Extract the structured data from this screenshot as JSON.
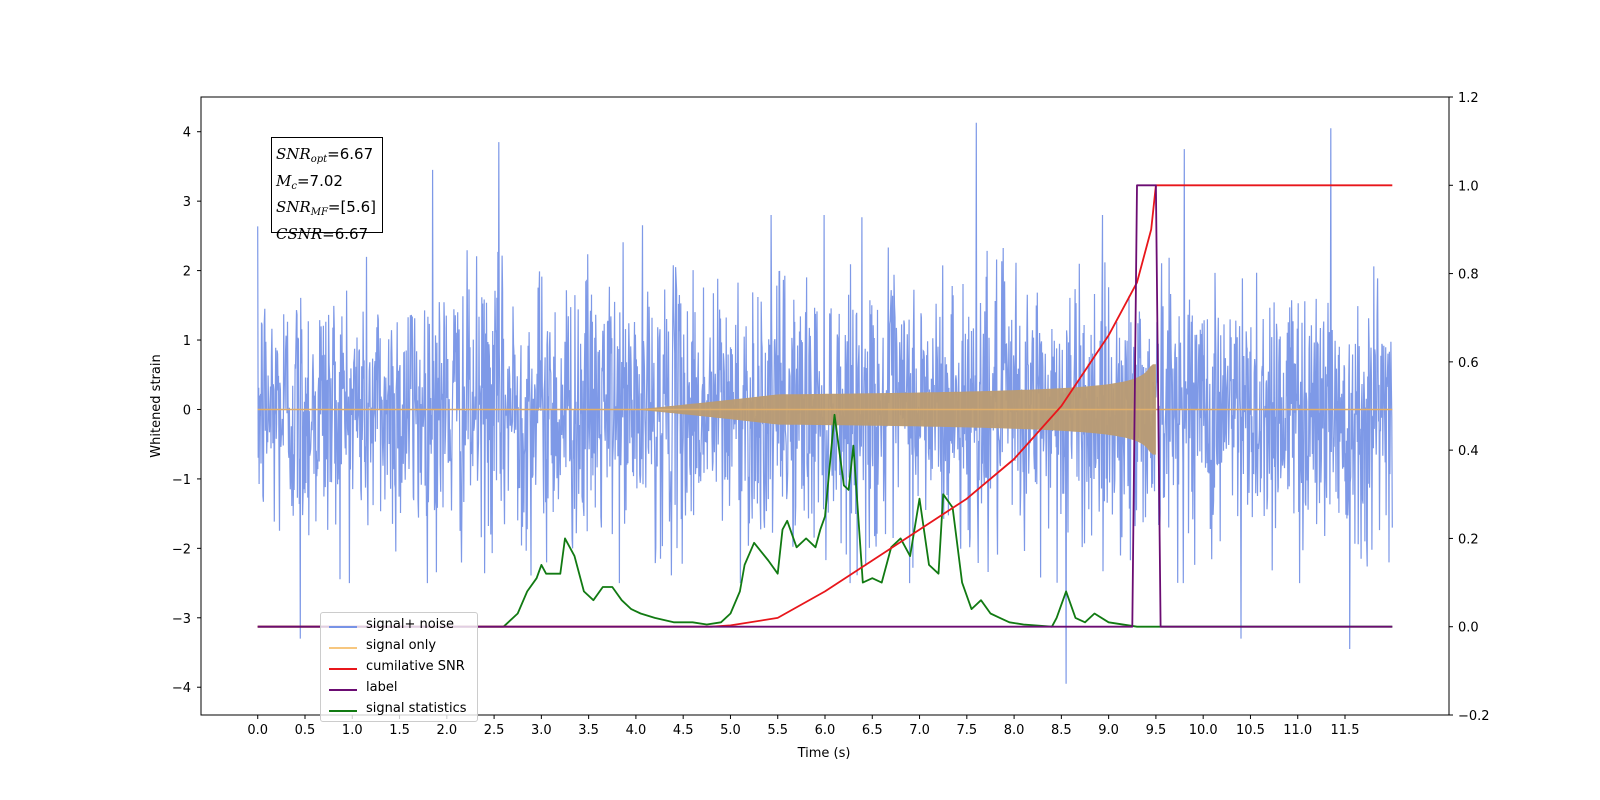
{
  "chart_data": {
    "type": "line",
    "xlabel": "Time (s)",
    "ylabel": "Whitened strain",
    "xlim": [
      -0.6,
      12.6
    ],
    "ylim": [
      -4.4,
      4.5
    ],
    "y2lim": [
      -0.2,
      1.2
    ],
    "xticks": [
      "0.0",
      "0.5",
      "1.0",
      "1.5",
      "2.0",
      "2.5",
      "3.0",
      "3.5",
      "4.0",
      "4.5",
      "5.0",
      "5.5",
      "6.0",
      "6.5",
      "7.0",
      "7.5",
      "8.0",
      "8.5",
      "9.0",
      "9.5",
      "10.0",
      "10.5",
      "11.0",
      "11.5"
    ],
    "yticks": [
      "−4",
      "−3",
      "−2",
      "−1",
      "0",
      "1",
      "2",
      "3",
      "4"
    ],
    "y2ticks": [
      "−0.2",
      "0.0",
      "0.2",
      "0.4",
      "0.6",
      "0.8",
      "1.0",
      "1.2"
    ],
    "annotation": {
      "snr_opt_label": "SNR",
      "snr_opt_sub": "opt",
      "snr_opt_value": "=6.67",
      "mc_label": "M",
      "mc_sub": "c",
      "mc_value": "=7.02",
      "snr_mf_label": "SNR",
      "snr_mf_sub": "MF",
      "snr_mf_value": "=[5.6]",
      "csnr_label": "CSNR",
      "csnr_value": "=6.67"
    },
    "series": [
      {
        "name": "signal+ noise",
        "color": "#7793e6",
        "axis": "left",
        "description_type": "noise",
        "x_range": [
          0,
          12
        ],
        "typical_amplitude": [
          -2.0,
          2.3
        ],
        "notable_peaks": [
          {
            "x": 7.6,
            "y": 4.13
          },
          {
            "x": 2.55,
            "y": 3.85
          },
          {
            "x": 11.35,
            "y": 4.05
          },
          {
            "x": 8.55,
            "y": -3.95
          },
          {
            "x": 11.55,
            "y": -3.45
          },
          {
            "x": 0.45,
            "y": -3.3
          },
          {
            "x": 10.4,
            "y": -3.3
          },
          {
            "x": 1.85,
            "y": 3.45
          },
          {
            "x": 9.8,
            "y": 3.75
          }
        ]
      },
      {
        "name": "signal only",
        "color": "#f2a33a",
        "axis": "left",
        "description_type": "chirp",
        "start": 5.5,
        "merger": 9.5,
        "peak_amplitude": 0.65
      },
      {
        "name": "cumilative SNR",
        "color": "#e8161b",
        "axis": "right",
        "x": [
          0.0,
          4.8,
          5.0,
          5.5,
          6.0,
          6.5,
          7.0,
          7.5,
          8.0,
          8.5,
          9.0,
          9.3,
          9.45,
          9.5,
          9.6,
          12.0
        ],
        "y": [
          0.0,
          0.0,
          0.003,
          0.02,
          0.08,
          0.15,
          0.22,
          0.29,
          0.38,
          0.5,
          0.66,
          0.78,
          0.9,
          1.0,
          1.0,
          1.0
        ]
      },
      {
        "name": "label",
        "color": "#6b0c72",
        "axis": "right",
        "x": [
          0.0,
          9.25,
          9.3,
          9.5,
          9.55,
          12.0
        ],
        "y": [
          0.0,
          0.0,
          1.0,
          1.0,
          0.0,
          0.0
        ]
      },
      {
        "name": "signal statistics",
        "color": "#117a12",
        "axis": "right",
        "x": [
          0.0,
          2.6,
          2.75,
          2.85,
          2.95,
          3.0,
          3.05,
          3.2,
          3.25,
          3.35,
          3.45,
          3.55,
          3.65,
          3.75,
          3.85,
          3.95,
          4.05,
          4.2,
          4.4,
          4.6,
          4.75,
          4.9,
          5.0,
          5.1,
          5.15,
          5.25,
          5.4,
          5.5,
          5.55,
          5.6,
          5.7,
          5.8,
          5.9,
          5.95,
          6.0,
          6.1,
          6.2,
          6.25,
          6.3,
          6.4,
          6.5,
          6.6,
          6.7,
          6.8,
          6.9,
          7.0,
          7.1,
          7.2,
          7.25,
          7.35,
          7.45,
          7.55,
          7.65,
          7.75,
          7.85,
          7.95,
          8.1,
          8.4,
          8.45,
          8.55,
          8.65,
          8.75,
          8.85,
          9.0,
          9.3,
          9.5,
          12.0
        ],
        "y": [
          0.0,
          0.0,
          0.03,
          0.08,
          0.11,
          0.14,
          0.12,
          0.12,
          0.2,
          0.16,
          0.08,
          0.06,
          0.09,
          0.09,
          0.06,
          0.04,
          0.03,
          0.02,
          0.01,
          0.01,
          0.005,
          0.01,
          0.03,
          0.08,
          0.14,
          0.19,
          0.15,
          0.12,
          0.22,
          0.24,
          0.18,
          0.2,
          0.18,
          0.22,
          0.25,
          0.48,
          0.32,
          0.31,
          0.41,
          0.1,
          0.11,
          0.1,
          0.18,
          0.2,
          0.16,
          0.29,
          0.14,
          0.12,
          0.3,
          0.27,
          0.1,
          0.04,
          0.06,
          0.03,
          0.02,
          0.01,
          0.005,
          0.0,
          0.02,
          0.08,
          0.02,
          0.01,
          0.03,
          0.01,
          0.0,
          0.0,
          0.0
        ]
      }
    ],
    "legend": {
      "placement": "lower-left",
      "entries": [
        {
          "label": "signal+ noise",
          "color": "#7793e6"
        },
        {
          "label": "signal only",
          "color": "#f2a33a"
        },
        {
          "label": "cumilative SNR",
          "color": "#e8161b"
        },
        {
          "label": "label",
          "color": "#6b0c72"
        },
        {
          "label": "signal statistics",
          "color": "#117a12"
        }
      ]
    }
  }
}
